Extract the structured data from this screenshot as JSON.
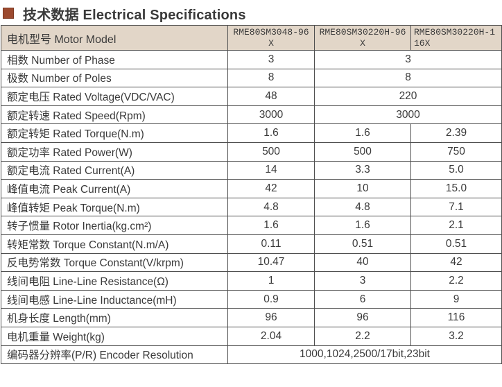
{
  "title": {
    "text": "技术数据 Electrical Specifications"
  },
  "colors": {
    "accent": "#9c4a2f",
    "accent_border": "#7e3a22",
    "header_bg": "#e2d6c8",
    "border": "#4f4f4f",
    "text": "#3a3a3a"
  },
  "table": {
    "header": {
      "row_label": "电机型号 Motor Model",
      "models": [
        "RME80SM3048-96X",
        "RME80SM30220H-96X",
        "RME80SM30220H-116X"
      ]
    },
    "rows": [
      {
        "label": "相数 Number of Phase",
        "cells": [
          {
            "text": "3"
          },
          {
            "text": "3",
            "colspan": 2
          }
        ]
      },
      {
        "label": "极数 Number of Poles",
        "cells": [
          {
            "text": "8"
          },
          {
            "text": "8",
            "colspan": 2
          }
        ]
      },
      {
        "label": "额定电压 Rated Voltage(VDC/VAC)",
        "cells": [
          {
            "text": "48"
          },
          {
            "text": "220",
            "colspan": 2
          }
        ]
      },
      {
        "label": "额定转速 Rated Speed(Rpm)",
        "cells": [
          {
            "text": "3000"
          },
          {
            "text": "3000",
            "colspan": 2
          }
        ]
      },
      {
        "label": "额定转矩 Rated Torque(N.m)",
        "cells": [
          {
            "text": "1.6"
          },
          {
            "text": "1.6"
          },
          {
            "text": "2.39"
          }
        ]
      },
      {
        "label": "额定功率 Rated Power(W)",
        "cells": [
          {
            "text": "500"
          },
          {
            "text": "500"
          },
          {
            "text": "750"
          }
        ]
      },
      {
        "label": "额定电流 Rated Current(A)",
        "cells": [
          {
            "text": "14"
          },
          {
            "text": "3.3"
          },
          {
            "text": "5.0"
          }
        ]
      },
      {
        "label": "峰值电流 Peak Current(A)",
        "cells": [
          {
            "text": "42"
          },
          {
            "text": "10"
          },
          {
            "text": "15.0"
          }
        ]
      },
      {
        "label": "峰值转矩 Peak Torque(N.m)",
        "cells": [
          {
            "text": "4.8"
          },
          {
            "text": "4.8"
          },
          {
            "text": "7.1"
          }
        ]
      },
      {
        "label": "转子惯量 Rotor Inertia(kg.cm²)",
        "cells": [
          {
            "text": "1.6"
          },
          {
            "text": "1.6"
          },
          {
            "text": "2.1"
          }
        ]
      },
      {
        "label": "转矩常数 Torque Constant(N.m/A)",
        "cells": [
          {
            "text": "0.11"
          },
          {
            "text": "0.51"
          },
          {
            "text": "0.51"
          }
        ]
      },
      {
        "label": "反电势常数 Torque Constant(V/krpm)",
        "cells": [
          {
            "text": "10.47"
          },
          {
            "text": "40"
          },
          {
            "text": "42"
          }
        ]
      },
      {
        "label": "线间电阻 Line-Line Resistance(Ω)",
        "cells": [
          {
            "text": "1"
          },
          {
            "text": "3"
          },
          {
            "text": "2.2"
          }
        ]
      },
      {
        "label": "线间电感 Line-Line Inductance(mH)",
        "cells": [
          {
            "text": "0.9"
          },
          {
            "text": "6"
          },
          {
            "text": "9"
          }
        ]
      },
      {
        "label": "机身长度 Length(mm)",
        "cells": [
          {
            "text": "96"
          },
          {
            "text": "96"
          },
          {
            "text": "116"
          }
        ]
      },
      {
        "label": "电机重量 Weight(kg)",
        "cells": [
          {
            "text": "2.04"
          },
          {
            "text": "2.2"
          },
          {
            "text": "3.2"
          }
        ]
      },
      {
        "label": "编码器分辨率(P/R) Encoder Resolution",
        "cells": [
          {
            "text": "1000,1024,2500/17bit,23bit",
            "colspan": 3
          }
        ]
      }
    ]
  }
}
